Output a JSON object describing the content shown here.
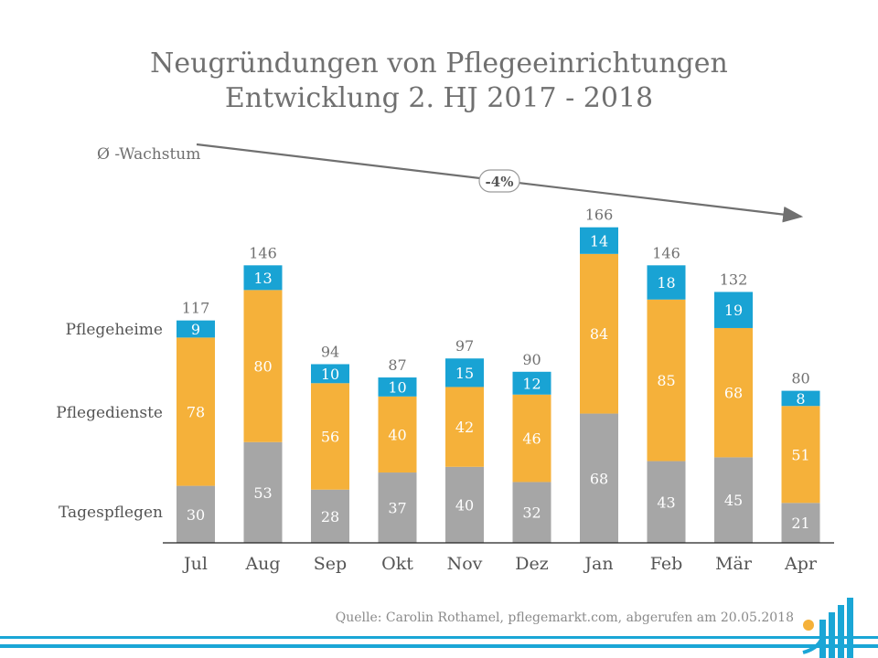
{
  "title": {
    "line1": "Neugründungen von Pflegeeinrichtungen",
    "line2": "Entwicklung 2. HJ 2017 - 2018"
  },
  "trend": {
    "label": "Ø -Wachstum",
    "value": "-4%"
  },
  "source": "Quelle: Carolin Rothamel, pflegemarkt.com, abgerufen am 20.05.2018",
  "colors": {
    "tagespflegen": "#a6a6a6",
    "pflegedienste": "#f5b13a",
    "pflegeheime": "#19a3d4",
    "text": "#707070",
    "axis": "#222222",
    "arrow": "#707070"
  },
  "chart_data": {
    "type": "bar",
    "stacked": true,
    "categories": [
      "Jul",
      "Aug",
      "Sep",
      "Okt",
      "Nov",
      "Dez",
      "Jan",
      "Feb",
      "Mär",
      "Apr"
    ],
    "series": [
      {
        "name": "Tagespflegen",
        "values": [
          30,
          53,
          28,
          37,
          40,
          32,
          68,
          43,
          45,
          21
        ]
      },
      {
        "name": "Pflegedienste",
        "values": [
          78,
          80,
          56,
          40,
          42,
          46,
          84,
          85,
          68,
          51
        ]
      },
      {
        "name": "Pflegeheime",
        "values": [
          9,
          13,
          10,
          10,
          15,
          12,
          14,
          18,
          19,
          8
        ]
      }
    ],
    "totals": [
      117,
      146,
      94,
      87,
      97,
      90,
      166,
      146,
      132,
      80
    ],
    "ylim": [
      0,
      175
    ],
    "grid": false,
    "legend": "left"
  }
}
